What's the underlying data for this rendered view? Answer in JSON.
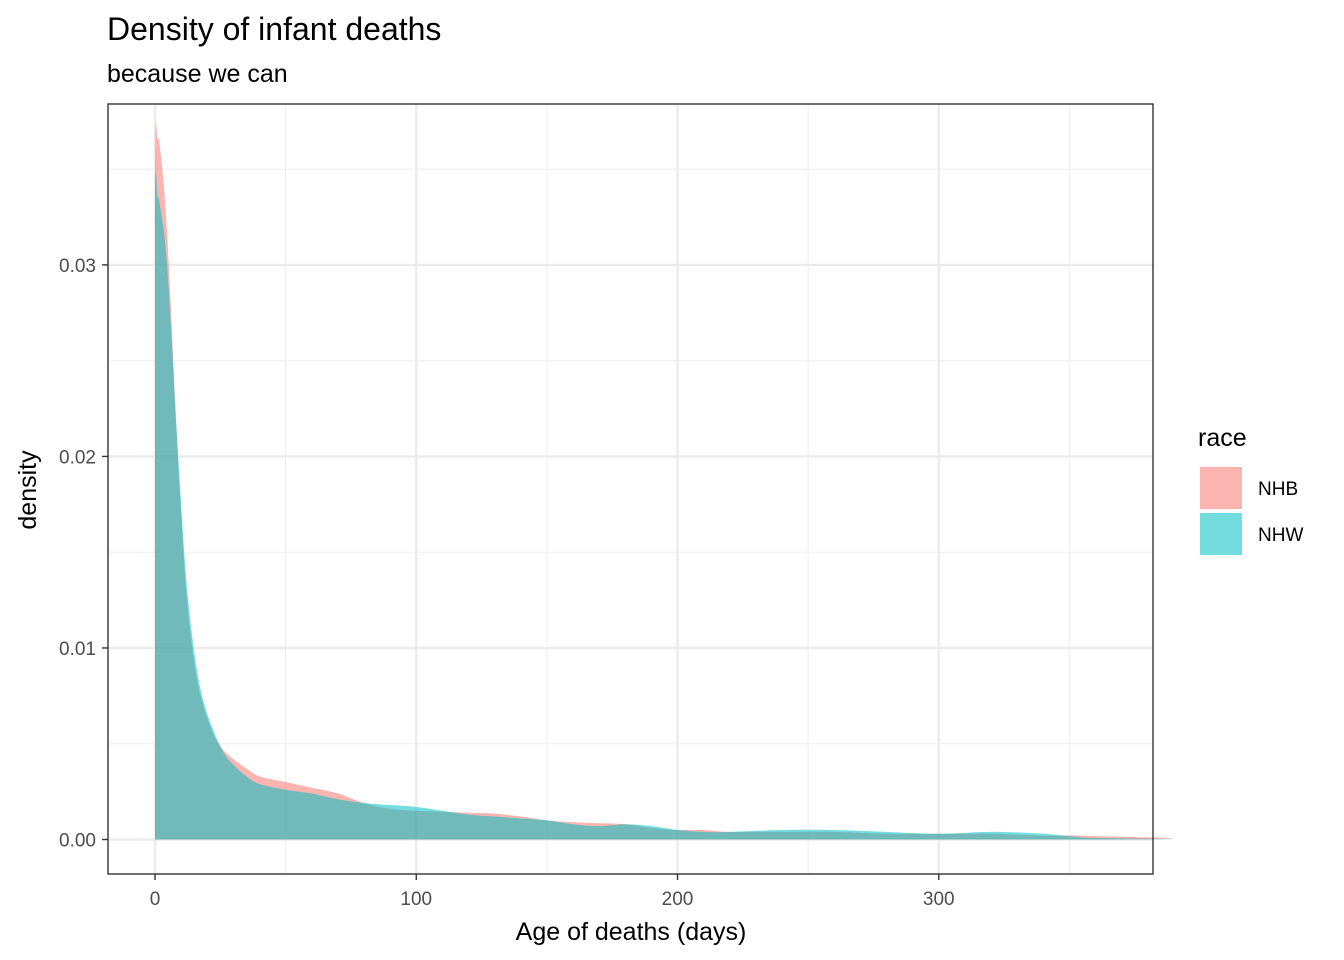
{
  "chart_data": {
    "type": "area",
    "title": "Density of infant deaths",
    "subtitle": "because we can",
    "xlabel": "Age of deaths (days)",
    "ylabel": "density",
    "xlim": [
      -18,
      382
    ],
    "ylim": [
      -0.0018,
      0.0384
    ],
    "x_ticks": [
      0,
      100,
      200,
      300
    ],
    "x_tick_labels": [
      "0",
      "100",
      "200",
      "300"
    ],
    "y_ticks": [
      0,
      0.01,
      0.02,
      0.03
    ],
    "y_tick_labels": [
      "0.00",
      "0.01",
      "0.02",
      "0.03"
    ],
    "grid": true,
    "legend": {
      "title": "race",
      "position": "right"
    },
    "series": [
      {
        "name": "NHB",
        "color": "#F8766D",
        "points": [
          [
            0,
            0
          ],
          [
            0,
            0.034
          ],
          [
            1,
            0.0365
          ],
          [
            2,
            0.036
          ],
          [
            4,
            0.033
          ],
          [
            6,
            0.028
          ],
          [
            8,
            0.022
          ],
          [
            10,
            0.017
          ],
          [
            12,
            0.0128
          ],
          [
            15,
            0.0092
          ],
          [
            18,
            0.0072
          ],
          [
            22,
            0.0056
          ],
          [
            26,
            0.0047
          ],
          [
            30,
            0.0042
          ],
          [
            35,
            0.0037
          ],
          [
            40,
            0.0033
          ],
          [
            50,
            0.003
          ],
          [
            60,
            0.0027
          ],
          [
            70,
            0.0024
          ],
          [
            80,
            0.0019
          ],
          [
            90,
            0.0016
          ],
          [
            100,
            0.0015
          ],
          [
            110,
            0.00145
          ],
          [
            120,
            0.0014
          ],
          [
            130,
            0.00135
          ],
          [
            140,
            0.0012
          ],
          [
            150,
            0.001
          ],
          [
            160,
            0.0009
          ],
          [
            170,
            0.00085
          ],
          [
            180,
            0.0008
          ],
          [
            190,
            0.0006
          ],
          [
            200,
            0.0005
          ],
          [
            210,
            0.0005
          ],
          [
            220,
            0.0004
          ],
          [
            240,
            0.0004
          ],
          [
            260,
            0.0004
          ],
          [
            280,
            0.0003
          ],
          [
            300,
            0.0003
          ],
          [
            320,
            0.0003
          ],
          [
            340,
            0.0002
          ],
          [
            355,
            0.0002
          ],
          [
            365,
            0
          ],
          [
            0,
            0
          ]
        ]
      },
      {
        "name": "NHW",
        "color": "#00BFC4",
        "points": [
          [
            0,
            0
          ],
          [
            0,
            0.032
          ],
          [
            1,
            0.0335
          ],
          [
            2,
            0.033
          ],
          [
            4,
            0.031
          ],
          [
            6,
            0.027
          ],
          [
            8,
            0.022
          ],
          [
            10,
            0.0175
          ],
          [
            12,
            0.0135
          ],
          [
            15,
            0.0098
          ],
          [
            18,
            0.0075
          ],
          [
            22,
            0.0058
          ],
          [
            26,
            0.0046
          ],
          [
            30,
            0.0039
          ],
          [
            35,
            0.0033
          ],
          [
            40,
            0.0029
          ],
          [
            50,
            0.0026
          ],
          [
            60,
            0.0024
          ],
          [
            70,
            0.0021
          ],
          [
            80,
            0.0019
          ],
          [
            90,
            0.0018
          ],
          [
            100,
            0.0017
          ],
          [
            110,
            0.0015
          ],
          [
            120,
            0.0013
          ],
          [
            130,
            0.0012
          ],
          [
            140,
            0.0011
          ],
          [
            150,
            0.001
          ],
          [
            160,
            0.0008
          ],
          [
            170,
            0.0007
          ],
          [
            180,
            0.0008
          ],
          [
            190,
            0.0007
          ],
          [
            200,
            0.0005
          ],
          [
            210,
            0.0004
          ],
          [
            220,
            0.0004
          ],
          [
            240,
            0.0005
          ],
          [
            260,
            0.0005
          ],
          [
            280,
            0.0004
          ],
          [
            300,
            0.0003
          ],
          [
            320,
            0.0004
          ],
          [
            340,
            0.0003
          ],
          [
            355,
            0.0001
          ],
          [
            365,
            0
          ],
          [
            0,
            0
          ]
        ]
      }
    ]
  }
}
